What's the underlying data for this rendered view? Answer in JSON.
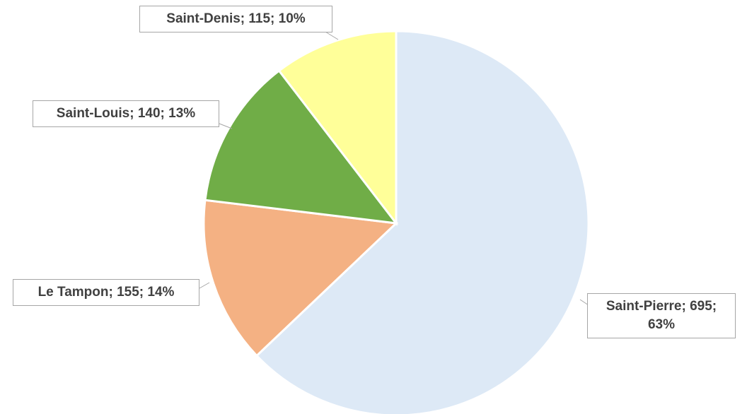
{
  "chart_data": {
    "type": "pie",
    "categories": [
      "Saint-Pierre",
      "Le Tampon",
      "Saint-Louis",
      "Saint-Denis"
    ],
    "values": [
      695,
      155,
      140,
      115
    ],
    "value_labels": [
      "Saint-Pierre; 695; 63%",
      "Le Tampon; 155; 14%",
      "Saint-Louis; 140; 13%",
      "Saint-Denis; 115; 10%"
    ],
    "colors": [
      "#dde9f6",
      "#f4b183",
      "#70ad47",
      "#ffff99"
    ]
  }
}
